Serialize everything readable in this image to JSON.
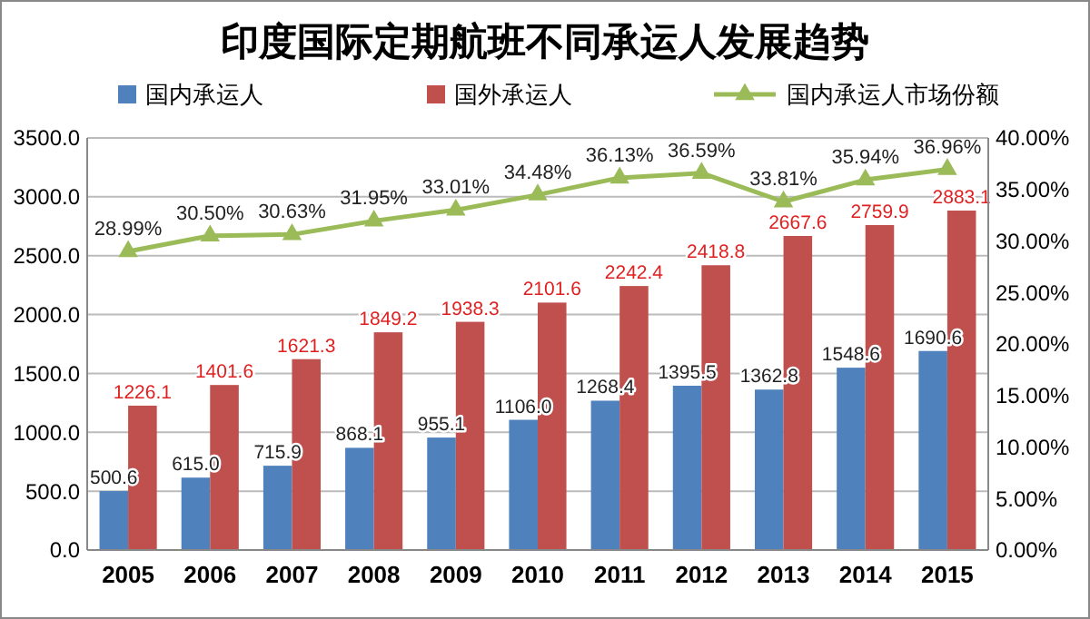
{
  "chart_data": {
    "type": "bar",
    "title": "印度国际定期航班不同承运人发展趋势",
    "categories": [
      "2005",
      "2006",
      "2007",
      "2008",
      "2009",
      "2010",
      "2011",
      "2012",
      "2013",
      "2014",
      "2015"
    ],
    "series": [
      {
        "name": "国内承运人",
        "color": "#4f81bd",
        "values": [
          500.6,
          615.0,
          715.9,
          868.1,
          955.1,
          1106.0,
          1268.4,
          1395.5,
          1362.8,
          1548.6,
          1690.6
        ],
        "value_labels": [
          "500.6",
          "615.0",
          "715.9",
          "868.1",
          "955.1",
          "1106.0",
          "1268.4",
          "1395.5",
          "1362.8",
          "1548.6",
          "1690.6"
        ]
      },
      {
        "name": "国外承运人",
        "color": "#c0504d",
        "values": [
          1226.1,
          1401.6,
          1621.3,
          1849.2,
          1938.3,
          2101.6,
          2242.4,
          2418.8,
          2667.6,
          2759.9,
          2883.1
        ],
        "value_labels": [
          "1226.1",
          "1401.6",
          "1621.3",
          "1849.2",
          "1938.3",
          "2101.6",
          "2242.4",
          "2418.8",
          "2667.6",
          "2759.9",
          "2883.1"
        ]
      },
      {
        "name": "国内承运人市场份额",
        "type": "line",
        "axis": "y2",
        "color": "#9bbb59",
        "marker": "triangle",
        "values": [
          28.99,
          30.5,
          30.63,
          31.95,
          33.01,
          34.48,
          36.13,
          36.59,
          33.81,
          35.94,
          36.96
        ],
        "value_labels": [
          "28.99%",
          "30.50%",
          "30.63%",
          "31.95%",
          "33.01%",
          "34.48%",
          "36.13%",
          "36.59%",
          "33.81%",
          "35.94%",
          "36.96%"
        ]
      }
    ],
    "ylim": [
      0,
      3500
    ],
    "yticks": [
      {
        "value": 0,
        "label": "0.0"
      },
      {
        "value": 500,
        "label": "500.0"
      },
      {
        "value": 1000,
        "label": "1000.0"
      },
      {
        "value": 1500,
        "label": "1500.0"
      },
      {
        "value": 2000,
        "label": "2000.0"
      },
      {
        "value": 2500,
        "label": "2500.0"
      },
      {
        "value": 3000,
        "label": "3000.0"
      },
      {
        "value": 3500,
        "label": "3500.0"
      }
    ],
    "y2lim": [
      0,
      40
    ],
    "y2ticks": [
      {
        "value": 0,
        "label": "0.00%"
      },
      {
        "value": 5,
        "label": "5.00%"
      },
      {
        "value": 10,
        "label": "10.00%"
      },
      {
        "value": 15,
        "label": "15.00%"
      },
      {
        "value": 20,
        "label": "20.00%"
      },
      {
        "value": 25,
        "label": "25.00%"
      },
      {
        "value": 30,
        "label": "30.00%"
      },
      {
        "value": 35,
        "label": "35.00%"
      },
      {
        "value": 40,
        "label": "40.00%"
      }
    ],
    "grid": "y",
    "legend": "top"
  }
}
